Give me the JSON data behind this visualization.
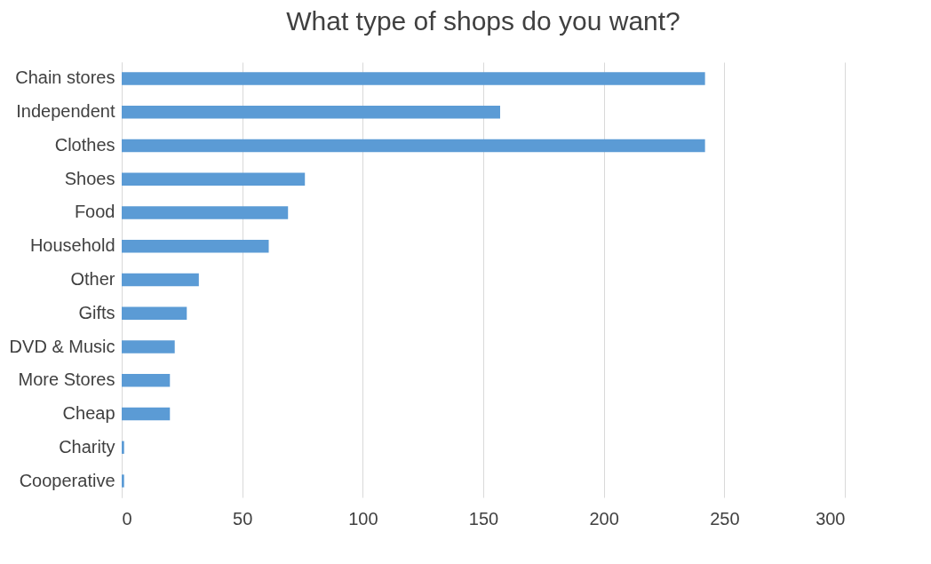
{
  "chart_data": {
    "type": "bar",
    "orientation": "horizontal",
    "title": "What type of shops do you want?",
    "categories": [
      "Chain stores",
      "Independent",
      "Clothes",
      "Shoes",
      "Food",
      "Household",
      "Other",
      "Gifts",
      "DVD & Music",
      "More Stores",
      "Cheap",
      "Charity",
      "Cooperative"
    ],
    "values": [
      242,
      157,
      242,
      76,
      69,
      61,
      32,
      27,
      22,
      20,
      20,
      1,
      1
    ],
    "color": "#5b9bd5",
    "xlim": [
      0,
      300
    ],
    "xticks": [
      0,
      50,
      100,
      150,
      200,
      250,
      300
    ],
    "grid": "x",
    "legend": false
  }
}
